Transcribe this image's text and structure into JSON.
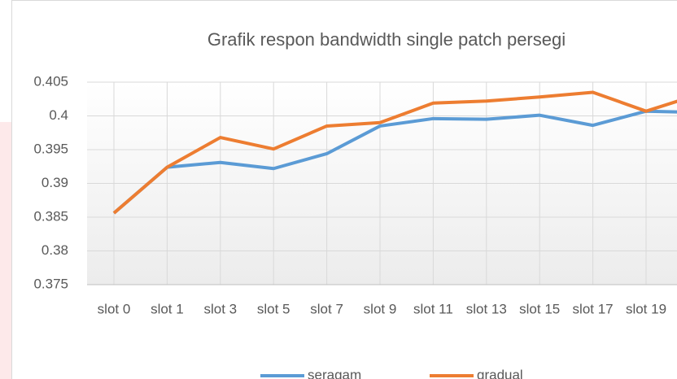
{
  "chart_data": {
    "type": "line",
    "title": "Grafik respon bandwidth single patch persegi",
    "categories": [
      "slot 0",
      "slot 1",
      "slot 3",
      "slot 5",
      "slot 7",
      "slot 9",
      "slot 11",
      "slot 13",
      "slot 15",
      "slot 17",
      "slot 19",
      null
    ],
    "series": [
      {
        "name": "seragam",
        "color": "#5b9bd5",
        "values": [
          0.3856,
          0.3924,
          0.3931,
          0.3922,
          0.3944,
          0.3985,
          0.3996,
          0.3995,
          0.4001,
          0.3986,
          0.4007,
          0.4005
        ]
      },
      {
        "name": "gradual",
        "color": "#ed7d31",
        "values": [
          0.3856,
          0.3924,
          0.3968,
          0.3951,
          0.3985,
          0.399,
          0.4019,
          0.4022,
          0.4028,
          0.4035,
          0.4007,
          0.4032
        ]
      }
    ],
    "ylim": [
      0.375,
      0.405
    ],
    "yticks": [
      0.375,
      0.38,
      0.385,
      0.39,
      0.395,
      0.4,
      0.405
    ],
    "grid": true,
    "legend": "bottom"
  }
}
